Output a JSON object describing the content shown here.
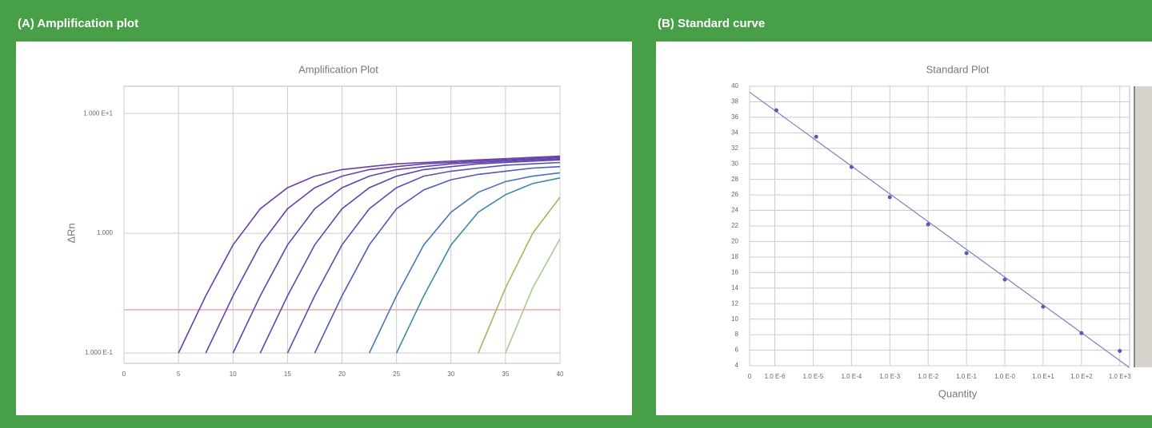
{
  "chart_data": [
    {
      "type": "line",
      "heading": "(A) Amplification plot",
      "title": "Amplification Plot",
      "y_label": "ΔRn",
      "x": [
        0,
        2.5,
        5,
        7.5,
        10,
        12.5,
        15,
        17.5,
        20,
        22.5,
        25,
        27.5,
        30,
        32.5,
        35,
        37.5,
        40
      ],
      "series": [
        {
          "color": "#6b3fa8",
          "values": [
            null,
            null,
            0.1,
            0.3,
            0.8,
            1.6,
            2.4,
            3.0,
            3.4,
            3.6,
            3.8,
            3.9,
            4.0,
            4.1,
            4.2,
            4.3,
            4.4
          ]
        },
        {
          "color": "#6840aa",
          "values": [
            null,
            null,
            null,
            0.1,
            0.3,
            0.8,
            1.6,
            2.4,
            3.0,
            3.4,
            3.6,
            3.8,
            3.9,
            4.0,
            4.1,
            4.2,
            4.3
          ]
        },
        {
          "color": "#6244ae",
          "values": [
            null,
            null,
            null,
            null,
            0.1,
            0.3,
            0.8,
            1.6,
            2.4,
            3.0,
            3.4,
            3.6,
            3.8,
            3.9,
            4.0,
            4.1,
            4.2
          ]
        },
        {
          "color": "#5c48b0",
          "values": [
            null,
            null,
            null,
            null,
            null,
            0.1,
            0.3,
            0.8,
            1.6,
            2.4,
            3.0,
            3.4,
            3.6,
            3.8,
            3.9,
            4.0,
            4.1
          ]
        },
        {
          "color": "#5650b4",
          "values": [
            null,
            null,
            null,
            null,
            null,
            null,
            0.1,
            0.3,
            0.8,
            1.6,
            2.4,
            3.0,
            3.3,
            3.5,
            3.7,
            3.8,
            3.9
          ]
        },
        {
          "color": "#505ab8",
          "values": [
            null,
            null,
            null,
            null,
            null,
            null,
            null,
            0.1,
            0.3,
            0.8,
            1.6,
            2.3,
            2.8,
            3.1,
            3.3,
            3.5,
            3.6
          ]
        },
        {
          "color": "#4a76b8",
          "values": [
            null,
            null,
            null,
            null,
            null,
            null,
            null,
            null,
            null,
            0.1,
            0.3,
            0.8,
            1.5,
            2.2,
            2.7,
            3.0,
            3.2
          ]
        },
        {
          "color": "#3f8aa8",
          "values": [
            null,
            null,
            null,
            null,
            null,
            null,
            null,
            null,
            null,
            null,
            0.1,
            0.3,
            0.8,
            1.5,
            2.1,
            2.6,
            2.9
          ]
        },
        {
          "color": "#9cba5e",
          "values": [
            null,
            null,
            null,
            null,
            null,
            null,
            null,
            null,
            null,
            null,
            null,
            null,
            null,
            0.1,
            0.35,
            1.0,
            2.0
          ]
        },
        {
          "color": "#a6cc90",
          "values": [
            null,
            null,
            null,
            null,
            null,
            null,
            null,
            null,
            null,
            null,
            null,
            null,
            null,
            null,
            0.1,
            0.35,
            0.9
          ]
        }
      ],
      "threshold": {
        "value": 0.23,
        "color": "#f2a8a8"
      },
      "xlim": [
        0,
        40
      ],
      "xticks": [
        0,
        5,
        10,
        15,
        20,
        25,
        30,
        35,
        40
      ],
      "ylim": [
        0.082,
        16.9
      ],
      "log_y": true,
      "yticks": [
        {
          "value": 0.1,
          "label": "1.000 E-1"
        },
        {
          "value": 1,
          "label": "1.000"
        },
        {
          "value": 10,
          "label": "1.000 E+1"
        }
      ],
      "grid": true
    },
    {
      "type": "scatter",
      "heading": "(B) Standard curve",
      "title": "Standard Plot",
      "x_label": "Quantity",
      "x": [
        1.1e-06,
        1.2e-05,
        0.0001,
        0.001,
        0.01,
        0.1,
        1,
        10,
        100,
        1000
      ],
      "values": [
        36.9,
        33.5,
        29.6,
        25.7,
        22.2,
        18.5,
        15.1,
        11.6,
        8.2,
        5.9
      ],
      "color": "#5a5ab0",
      "trendline": {
        "slope": -3.58,
        "intercept": 15.4,
        "color": "#7a80c0"
      },
      "xlim": [
        2.2e-07,
        1800
      ],
      "log_x": true,
      "xticks": [
        {
          "value": 2.2e-07,
          "label": "0"
        },
        {
          "value": 1e-06,
          "label": "1.0 E-6"
        },
        {
          "value": 1e-05,
          "label": "1.0 E-5"
        },
        {
          "value": 0.0001,
          "label": "1.0 E-4"
        },
        {
          "value": 0.001,
          "label": "1.0 E-3"
        },
        {
          "value": 0.01,
          "label": "1.0 E-2"
        },
        {
          "value": 0.1,
          "label": "1.0 E-1"
        },
        {
          "value": 1,
          "label": "1.0 E-0"
        },
        {
          "value": 10,
          "label": "1.0 E+1"
        },
        {
          "value": 100,
          "label": "1.0 E+2"
        },
        {
          "value": 1000,
          "label": "1.0 E+3"
        }
      ],
      "ylim": [
        4,
        40
      ],
      "yticks": [
        4,
        6,
        8,
        10,
        12,
        14,
        16,
        18,
        20,
        22,
        24,
        26,
        28,
        30,
        32,
        34,
        36,
        38,
        40
      ],
      "grid": true
    }
  ]
}
